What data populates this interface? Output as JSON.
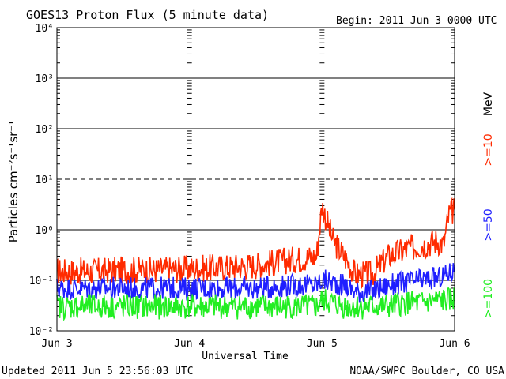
{
  "header": {
    "title": "GOES13 Proton Flux (5 minute data)",
    "begin": "Begin: 2011 Jun 3 0000 UTC"
  },
  "footer": {
    "updated": "Updated 2011 Jun  5 23:56:03 UTC",
    "credit": "NOAA/SWPC Boulder, CO USA"
  },
  "colors": {
    "red": "#ff2a00",
    "blue": "#1f1fff",
    "green": "#22ee22"
  },
  "chart_data": {
    "type": "line",
    "title": "GOES13 Proton Flux (5 minute data)",
    "xlabel": "Universal Time",
    "ylabel": "Particles cm⁻²s⁻¹sr⁻¹",
    "yscale": "log",
    "ylim": [
      0.01,
      10000
    ],
    "xlim": [
      "2011-06-03",
      "2011-06-06"
    ],
    "x_tick_labels": [
      "Jun 3",
      "Jun 4",
      "Jun 5",
      "Jun 6"
    ],
    "y_tick_labels": [
      "10⁻²",
      "10⁻¹",
      "10⁰",
      "10¹",
      "10²",
      "10³",
      "10⁴"
    ],
    "grid": "horizontal lines at decades",
    "unit_label": "MeV",
    "x": [
      "2011-06-03",
      "2011-06-03 06:00",
      "2011-06-03 12:00",
      "2011-06-03 18:00",
      "2011-06-04",
      "2011-06-04 06:00",
      "2011-06-04 12:00",
      "2011-06-04 18:00",
      "2011-06-04 23:00",
      "2011-06-05 00:00",
      "2011-06-05 02:00",
      "2011-06-05 04:00",
      "2011-06-05 06:00",
      "2011-06-05 09:00",
      "2011-06-05 12:00",
      "2011-06-05 15:00",
      "2011-06-05 18:00",
      "2011-06-05 21:00",
      "2011-06-05 22:00",
      "2011-06-05 23:00",
      "2011-06-06"
    ],
    "series": [
      {
        "name": ">=10",
        "color": "#ff2a00",
        "values": [
          0.15,
          0.15,
          0.16,
          0.16,
          0.17,
          0.18,
          0.2,
          0.25,
          0.3,
          3.0,
          0.6,
          0.3,
          0.13,
          0.13,
          0.3,
          0.4,
          0.5,
          0.6,
          0.5,
          2.0,
          2.5
        ]
      },
      {
        "name": ">=50",
        "color": "#1f1fff",
        "values": [
          0.07,
          0.07,
          0.07,
          0.07,
          0.07,
          0.07,
          0.07,
          0.08,
          0.08,
          0.1,
          0.09,
          0.08,
          0.06,
          0.06,
          0.08,
          0.09,
          0.1,
          0.11,
          0.12,
          0.14,
          0.16
        ]
      },
      {
        "name": ">=100",
        "color": "#22ee22",
        "values": [
          0.03,
          0.03,
          0.03,
          0.03,
          0.03,
          0.03,
          0.03,
          0.03,
          0.03,
          0.04,
          0.035,
          0.03,
          0.03,
          0.03,
          0.03,
          0.035,
          0.035,
          0.04,
          0.04,
          0.04,
          0.045
        ]
      }
    ]
  }
}
